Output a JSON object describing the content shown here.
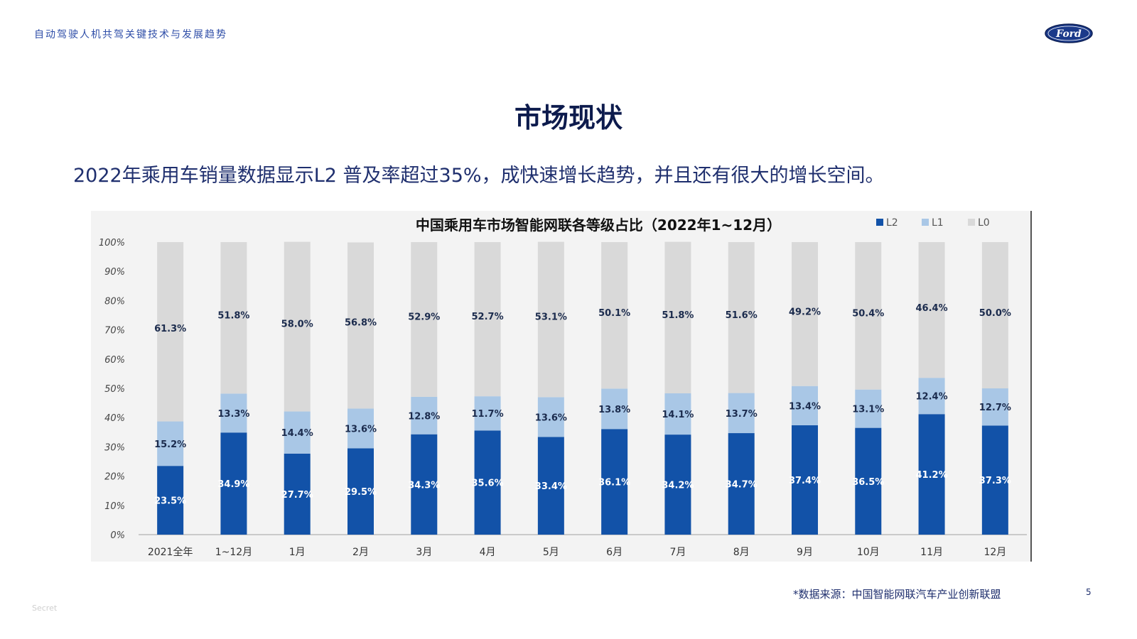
{
  "header": {
    "subtitle": "自动驾驶人机共驾关键技术与发展趋势",
    "logo_text": "Ford"
  },
  "slide": {
    "title": "市场现状",
    "summary": "2022年乘用车销量数据显示L2 普及率超过35%，成快速增长趋势，并且还有很大的增长空间。",
    "source": "*数据来源：中国智能网联汽车产业创新联盟",
    "page_number": "5",
    "classification": "Secret"
  },
  "colors": {
    "L2": "#1252a8",
    "L1": "#a9c7e6",
    "L0": "#d9d9d9",
    "accent": "#2f4ea8"
  },
  "chart_data": {
    "type": "bar",
    "stacked": true,
    "title": "中国乘用车市场智能网联各等级占比（2022年1~12月）",
    "categories": [
      "2021全年",
      "1~12月",
      "1月",
      "2月",
      "3月",
      "4月",
      "5月",
      "6月",
      "7月",
      "8月",
      "9月",
      "10月",
      "11月",
      "12月"
    ],
    "series": [
      {
        "name": "L2",
        "values": [
          23.5,
          34.9,
          27.7,
          29.5,
          34.3,
          35.6,
          33.4,
          36.1,
          34.2,
          34.7,
          37.4,
          36.5,
          41.2,
          37.3
        ]
      },
      {
        "name": "L1",
        "values": [
          15.2,
          13.3,
          14.4,
          13.6,
          12.8,
          11.7,
          13.6,
          13.8,
          14.1,
          13.7,
          13.4,
          13.1,
          12.4,
          12.7
        ]
      },
      {
        "name": "L0",
        "values": [
          61.3,
          51.8,
          58.0,
          56.8,
          52.9,
          52.7,
          53.1,
          50.1,
          51.8,
          51.6,
          49.2,
          50.4,
          46.4,
          50.0
        ]
      }
    ],
    "y_ticks": [
      "0%",
      "10%",
      "20%",
      "30%",
      "40%",
      "50%",
      "60%",
      "70%",
      "80%",
      "90%",
      "100%"
    ],
    "ylim": [
      0,
      100
    ],
    "legend": "top-right",
    "grid": false
  }
}
